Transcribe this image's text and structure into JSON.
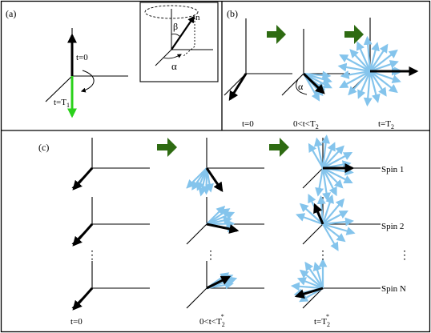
{
  "colors": {
    "frame": "#000000",
    "green_arrow": "#2e6b12",
    "green_vector": "#2bd11b",
    "light_blue": "#84c4ec",
    "black_vector": "#000000"
  },
  "panel_a": {
    "tag": "(a)",
    "label_t0": "t=0",
    "label_t1_main": "t=T",
    "label_t1_sub": "1",
    "inset": {
      "n_label": "n",
      "beta_label": "β",
      "alpha_label": "α"
    }
  },
  "panel_b": {
    "tag": "(b)",
    "alpha_label": "α",
    "times": [
      {
        "main": "t=0",
        "sub": ""
      },
      {
        "main": "0<t<T",
        "sub": "2"
      },
      {
        "main": "t=T",
        "sub": "2"
      }
    ]
  },
  "panel_c": {
    "tag": "(c)",
    "spins": [
      "Spin 1",
      "Spin 2",
      "Spin N"
    ],
    "ellipsis": "⋮",
    "times": [
      {
        "main": "t=0",
        "sub": "",
        "sup": ""
      },
      {
        "main": "0<t<T",
        "sub": "2",
        "sup": "*"
      },
      {
        "main": "t=T",
        "sub": "2",
        "sup": "*"
      }
    ]
  }
}
